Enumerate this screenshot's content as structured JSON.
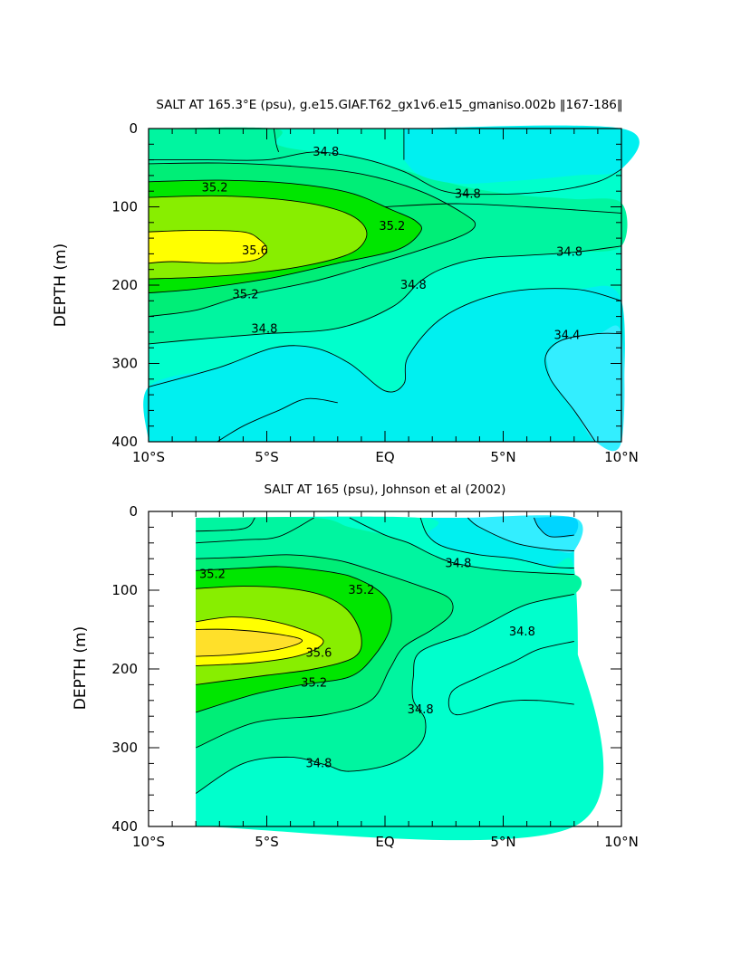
{
  "colors": {
    "c_lt_34_4": "#33EEFF",
    "c_34_4_34_6": "#00F0F0",
    "c_34_6_34_8": "#00FFCC",
    "c_34_8_35_0": "#00F5A0",
    "c_35_0_35_2": "#00EE77",
    "c_35_2_35_4": "#00E600",
    "c_35_4_35_6": "#88EE00",
    "c_35_6_35_8": "#FFFF00",
    "c_gt_35_8": "#FFE02A",
    "surface_fresh": "#00D5FF"
  },
  "chart_data": [
    {
      "type": "contour",
      "title": "SALT AT 165.3°E (psu), g.e15.GIAF.T62_gx1v6.e15_gmaniso.002b ‖167-186‖",
      "ylabel": "DEPTH (m)",
      "xlabel": "",
      "xlim": [
        -10,
        10
      ],
      "ylim": [
        400,
        0
      ],
      "x_ticks": [
        -10,
        -5,
        0,
        5,
        10
      ],
      "x_tick_labels": [
        "10°S",
        "5°S",
        "EQ",
        "5°N",
        "10°N"
      ],
      "y_ticks": [
        0,
        100,
        200,
        300,
        400
      ],
      "y_tick_labels": [
        "0",
        "100",
        "200",
        "300",
        "400"
      ],
      "data_extent": [
        -10,
        10
      ],
      "contour_levels": [
        34.4,
        34.6,
        34.8,
        35.0,
        35.2,
        35.4,
        35.6
      ],
      "contour_labels": [
        {
          "text": "34.8",
          "x": -2.5,
          "y": 30
        },
        {
          "text": "34.8",
          "x": 3.5,
          "y": 84
        },
        {
          "text": "35.2",
          "x": -7.2,
          "y": 76
        },
        {
          "text": "35.2",
          "x": 0.3,
          "y": 125
        },
        {
          "text": "35.6",
          "x": -5.5,
          "y": 156
        },
        {
          "text": "34.8",
          "x": 7.8,
          "y": 158
        },
        {
          "text": "35.2",
          "x": -5.9,
          "y": 212
        },
        {
          "text": "34.8",
          "x": 1.2,
          "y": 200
        },
        {
          "text": "34.8",
          "x": -5.1,
          "y": 256
        },
        {
          "text": "34.4",
          "x": 7.7,
          "y": 264
        }
      ]
    },
    {
      "type": "contour",
      "title": "SALT AT 165 (psu), Johnson et al (2002)",
      "ylabel": "DEPTH (m)",
      "xlabel": "",
      "xlim": [
        -10,
        10
      ],
      "ylim": [
        400,
        0
      ],
      "x_ticks": [
        -10,
        -5,
        0,
        5,
        10
      ],
      "x_tick_labels": [
        "10°S",
        "5°S",
        "EQ",
        "5°N",
        "10°N"
      ],
      "y_ticks": [
        0,
        100,
        200,
        300,
        400
      ],
      "y_tick_labels": [
        "0",
        "100",
        "200",
        "300",
        "400"
      ],
      "data_extent": [
        -8,
        8
      ],
      "contour_levels": [
        34.4,
        34.6,
        34.8,
        35.0,
        35.2,
        35.4,
        35.6,
        35.8
      ],
      "contour_labels": [
        {
          "text": "34.8",
          "x": 3.1,
          "y": 66
        },
        {
          "text": "35.2",
          "x": -7.3,
          "y": 80
        },
        {
          "text": "35.2",
          "x": -1.0,
          "y": 100
        },
        {
          "text": "35.6",
          "x": -2.8,
          "y": 180
        },
        {
          "text": "34.8",
          "x": 5.8,
          "y": 153
        },
        {
          "text": "35.2",
          "x": -3.0,
          "y": 218
        },
        {
          "text": "34.8",
          "x": 1.5,
          "y": 252
        },
        {
          "text": "34.8",
          "x": -2.8,
          "y": 320
        }
      ]
    }
  ]
}
